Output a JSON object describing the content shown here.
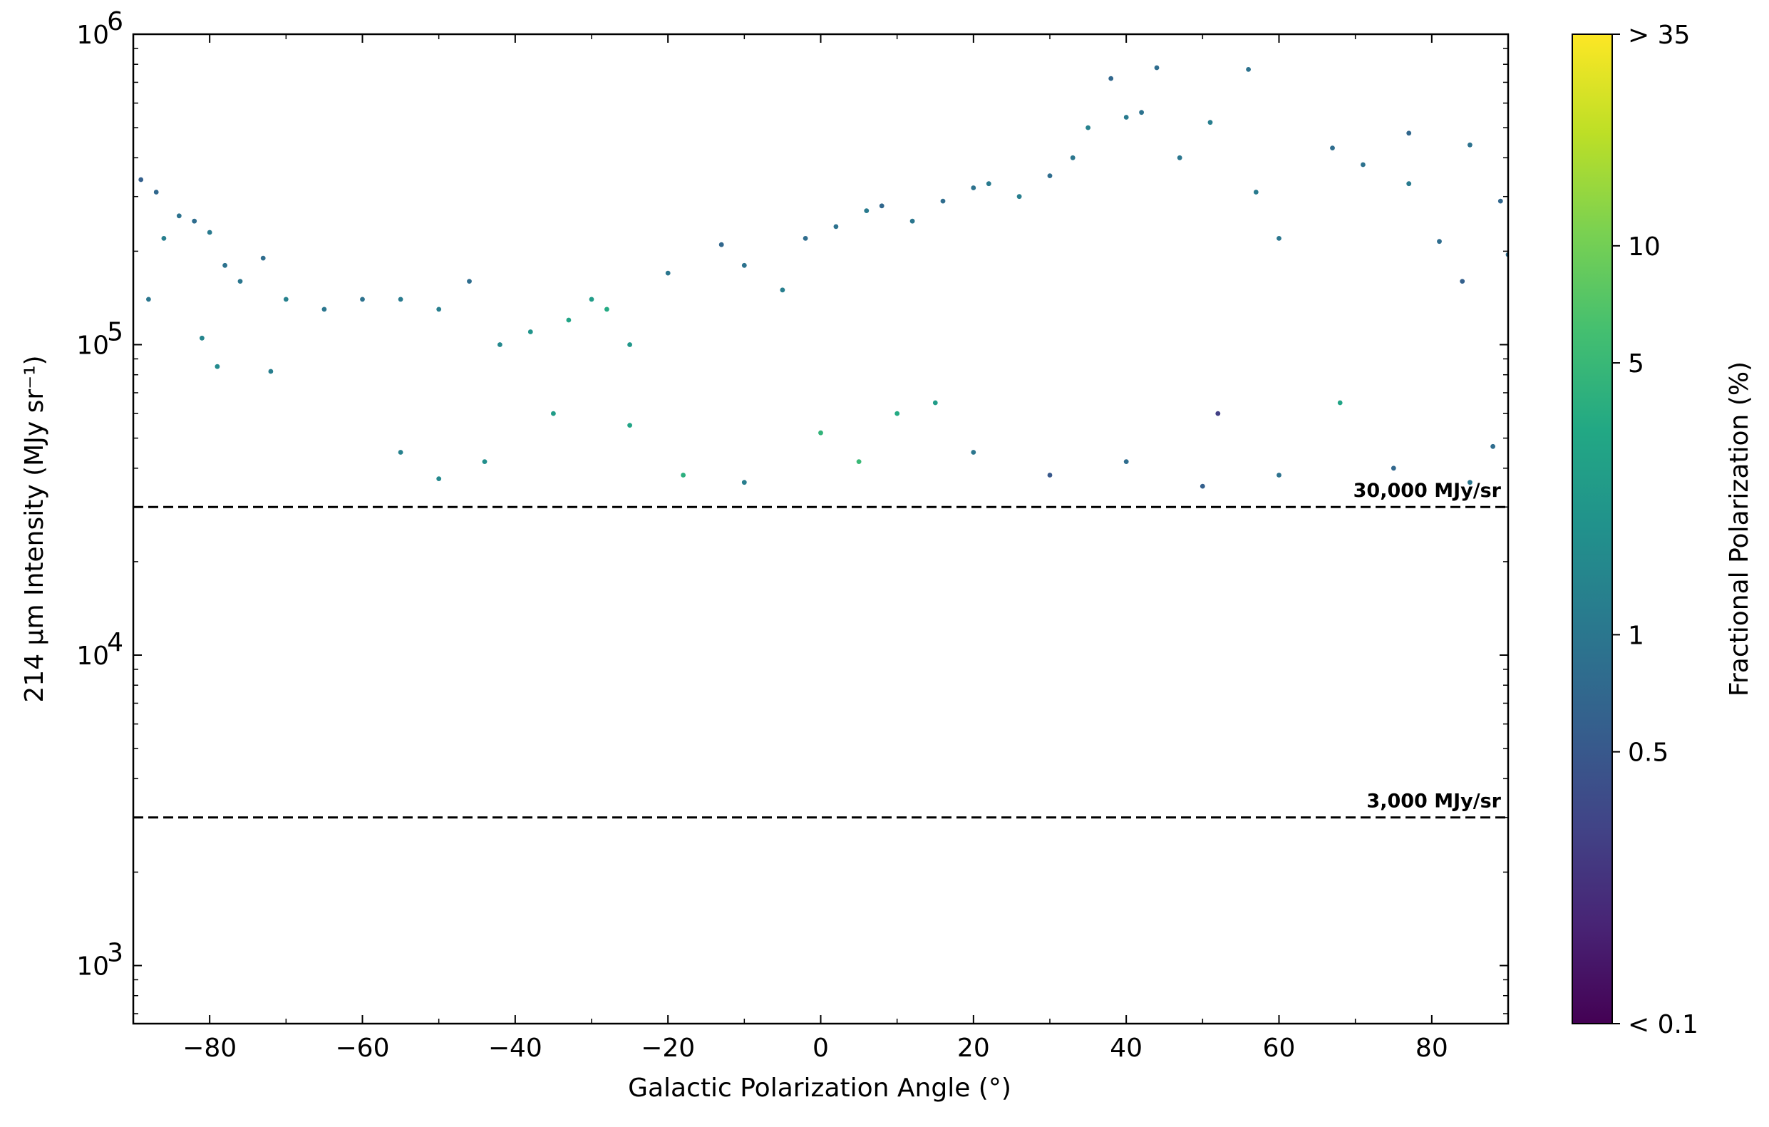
{
  "chart_data": {
    "type": "scatter",
    "xlabel": "Galactic Polarization Angle (°)",
    "ylabel": "214 μm Intensity (MJy sr⁻¹)",
    "xlim": [
      -90,
      90
    ],
    "ylim": [
      650,
      1000000
    ],
    "yscale": "log",
    "grid": false,
    "x_ticks": [
      "−80",
      "−60",
      "−40",
      "−20",
      "0",
      "20",
      "40",
      "60",
      "80"
    ],
    "x_tick_values": [
      -80,
      -60,
      -40,
      -20,
      0,
      20,
      40,
      60,
      80
    ],
    "y_ticks": [
      {
        "value": 1000,
        "base": "10",
        "exp": "3"
      },
      {
        "value": 10000,
        "base": "10",
        "exp": "4"
      },
      {
        "value": 100000,
        "base": "10",
        "exp": "5"
      },
      {
        "value": 1000000,
        "base": "10",
        "exp": "6"
      }
    ],
    "reference_lines": [
      {
        "value": 30000,
        "label": "30,000 MJy/sr",
        "style": "dashed"
      },
      {
        "value": 3000,
        "label": "3,000 MJy/sr",
        "style": "dashed"
      }
    ],
    "colorbar": {
      "label": "Fractional Polarization (%)",
      "scale": "log",
      "range": [
        0.1,
        35
      ],
      "colormap": "viridis",
      "ticks": [
        {
          "value": 35,
          "label": "> 35"
        },
        {
          "value": 10,
          "label": "10"
        },
        {
          "value": 5,
          "label": "5"
        },
        {
          "value": 1,
          "label": "1"
        },
        {
          "value": 0.5,
          "label": "0.5"
        },
        {
          "value": 0.1,
          "label": "< 0.1"
        }
      ]
    },
    "series": [
      {
        "points": [
          [
            -89,
            340000,
            0.6
          ],
          [
            -87,
            310000,
            0.7
          ],
          [
            -86,
            220000,
            1.2
          ],
          [
            -84,
            260000,
            0.9
          ],
          [
            -82,
            250000,
            0.8
          ],
          [
            -80,
            230000,
            1.1
          ],
          [
            -78,
            180000,
            0.9
          ],
          [
            -76,
            160000,
            1.0
          ],
          [
            -73,
            190000,
            0.8
          ],
          [
            -70,
            140000,
            1.3
          ],
          [
            -65,
            130000,
            1.0
          ],
          [
            -60,
            140000,
            0.9
          ],
          [
            -55,
            140000,
            1.1
          ],
          [
            -50,
            130000,
            1.2
          ],
          [
            -46,
            160000,
            0.8
          ],
          [
            -42,
            100000,
            1.5
          ],
          [
            -38,
            110000,
            2.0
          ],
          [
            -33,
            120000,
            3.0
          ],
          [
            -30,
            140000,
            2.5
          ],
          [
            -28,
            130000,
            3.5
          ],
          [
            -25,
            100000,
            2.2
          ],
          [
            -20,
            170000,
            1.0
          ],
          [
            -13,
            210000,
            0.7
          ],
          [
            -10,
            180000,
            0.9
          ],
          [
            -5,
            150000,
            1.2
          ],
          [
            -2,
            220000,
            0.8
          ],
          [
            2,
            240000,
            0.9
          ],
          [
            6,
            270000,
            1.1
          ],
          [
            8,
            280000,
            0.7
          ],
          [
            12,
            250000,
            1.0
          ],
          [
            16,
            290000,
            0.8
          ],
          [
            20,
            320000,
            0.9
          ],
          [
            22,
            330000,
            1.1
          ],
          [
            26,
            300000,
            1.2
          ],
          [
            30,
            350000,
            0.8
          ],
          [
            33,
            400000,
            1.0
          ],
          [
            35,
            500000,
            1.3
          ],
          [
            38,
            720000,
            0.7
          ],
          [
            40,
            540000,
            1.1
          ],
          [
            42,
            560000,
            0.9
          ],
          [
            44,
            780000,
            0.8
          ],
          [
            47,
            400000,
            1.0
          ],
          [
            51,
            520000,
            1.2
          ],
          [
            56,
            770000,
            0.9
          ],
          [
            57,
            310000,
            1.1
          ],
          [
            60,
            220000,
            1.0
          ],
          [
            67,
            430000,
            0.8
          ],
          [
            71,
            380000,
            0.9
          ],
          [
            77,
            480000,
            0.7
          ],
          [
            77,
            330000,
            1.1
          ],
          [
            81,
            215000,
            0.8
          ],
          [
            84,
            160000,
            0.6
          ],
          [
            85,
            440000,
            0.9
          ],
          [
            89,
            290000,
            0.7
          ],
          [
            90,
            195000,
            0.8
          ],
          [
            -88,
            140000,
            1.0
          ],
          [
            -81,
            105000,
            1.4
          ],
          [
            -79,
            85000,
            1.6
          ],
          [
            -72,
            82000,
            1.2
          ],
          [
            -55,
            45000,
            1.3
          ],
          [
            -50,
            37000,
            1.5
          ],
          [
            -44,
            42000,
            1.8
          ],
          [
            -35,
            60000,
            2.5
          ],
          [
            -25,
            55000,
            3.0
          ],
          [
            -18,
            38000,
            4.0
          ],
          [
            -10,
            36000,
            1.2
          ],
          [
            0,
            52000,
            4.5
          ],
          [
            5,
            42000,
            5.0
          ],
          [
            10,
            60000,
            3.5
          ],
          [
            15,
            65000,
            2.5
          ],
          [
            20,
            45000,
            1.0
          ],
          [
            30,
            38000,
            0.5
          ],
          [
            40,
            42000,
            0.8
          ],
          [
            50,
            35000,
            0.6
          ],
          [
            60,
            38000,
            0.9
          ],
          [
            68,
            65000,
            3.0
          ],
          [
            75,
            40000,
            0.7
          ],
          [
            85,
            36000,
            1.0
          ],
          [
            88,
            47000,
            0.8
          ],
          [
            52,
            60000,
            0.3
          ]
        ]
      }
    ]
  }
}
